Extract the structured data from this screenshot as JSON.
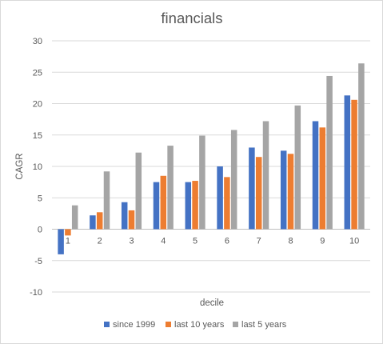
{
  "chart_data": {
    "type": "bar",
    "title": "financials",
    "xlabel": "decile",
    "ylabel": "CAGR",
    "categories": [
      "1",
      "2",
      "3",
      "4",
      "5",
      "6",
      "7",
      "8",
      "9",
      "10"
    ],
    "ylim": [
      -10,
      30
    ],
    "yticks": [
      -10,
      -5,
      0,
      5,
      10,
      15,
      20,
      25,
      30
    ],
    "grid": true,
    "legend_position": "bottom",
    "series": [
      {
        "name": "since 1999",
        "color": "#4472c4",
        "values": [
          -4.0,
          2.2,
          4.3,
          7.5,
          7.5,
          10.0,
          13.0,
          12.5,
          17.2,
          21.3
        ]
      },
      {
        "name": "last 10 years",
        "color": "#ed7d31",
        "values": [
          -1.0,
          2.7,
          3.0,
          8.5,
          7.7,
          8.3,
          11.5,
          12.0,
          16.2,
          20.6
        ]
      },
      {
        "name": "last 5 years",
        "color": "#a5a5a5",
        "values": [
          3.8,
          9.2,
          12.2,
          13.3,
          14.9,
          15.8,
          17.2,
          19.7,
          24.4,
          26.4
        ]
      }
    ]
  }
}
